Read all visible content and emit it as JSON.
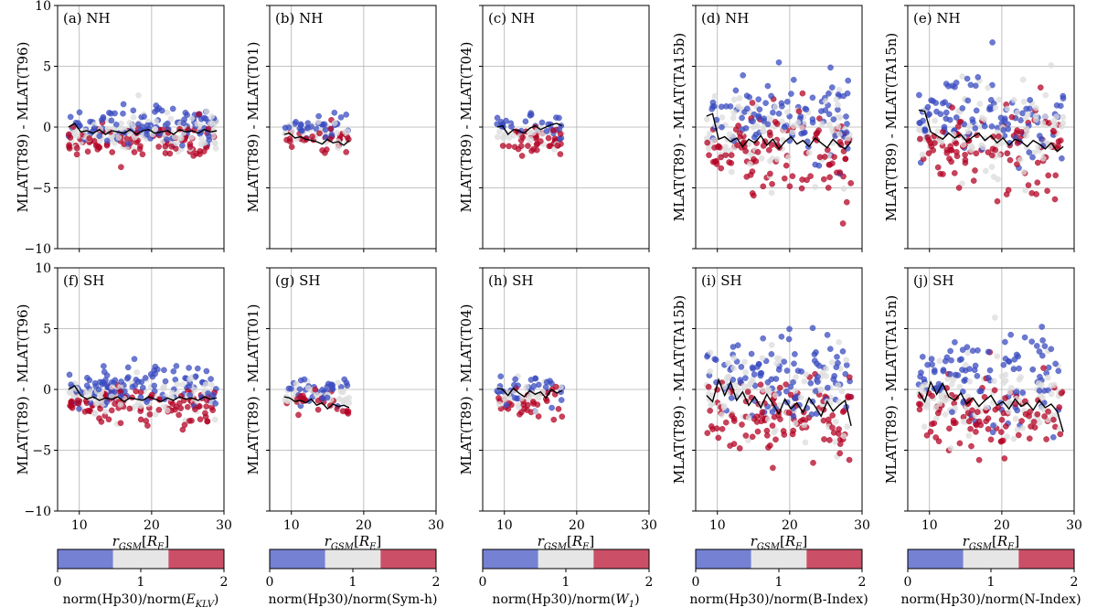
{
  "chart_data": {
    "type": "scatter",
    "layout": "2 rows x 5 columns of scatter panels with shared colorbars below each column",
    "xlim": [
      7,
      30
    ],
    "ylim": [
      -10,
      10
    ],
    "x_ticks": [
      10,
      20,
      30
    ],
    "y_ticks": [
      -10,
      -5,
      0,
      5,
      10
    ],
    "x_tick_labels": [
      "10",
      "20",
      "30"
    ],
    "y_tick_labels": [
      "−10",
      "−5",
      "0",
      "5",
      "10"
    ],
    "xlabel": "r_GSM[R_E]",
    "xlabel_main": "r",
    "xlabel_sub": "GSM",
    "xlabel_unit": "R",
    "xlabel_unit_sub": "E",
    "colormap": {
      "low": "#3b4cc0",
      "mid": "#dcdcdc",
      "high": "#b40426"
    },
    "colorbar_ticks": [
      "0",
      "1",
      "2"
    ],
    "colorbar_range": [
      0,
      2
    ],
    "median_line_color": "#000000",
    "panels": [
      {
        "label": "(a) NH",
        "hemisphere": "NH",
        "ylabel": "MLAT(T89) - MLAT(T96)",
        "x_range": [
          8.5,
          29
        ],
        "median_y": [
          0.0,
          0.3,
          -0.4,
          -0.3,
          -0.5,
          -0.2,
          -0.6,
          -0.3,
          -0.4,
          -0.5,
          -0.2,
          -0.6,
          -0.3,
          -0.2,
          -0.5,
          -0.4,
          -0.3,
          -0.6,
          -0.2,
          -0.4,
          -0.3,
          -0.5,
          -0.2,
          -0.4,
          -0.3
        ],
        "spread": 1.2,
        "show_ylabel_ticks": true
      },
      {
        "label": "(b) NH",
        "hemisphere": "NH",
        "ylabel": "MLAT(T89) - MLAT(T01)",
        "x_range": [
          9,
          18
        ],
        "median_y": [
          -0.6,
          -0.5,
          -0.9,
          -0.8,
          -1.0,
          -1.1,
          -1.2,
          -1.4,
          -1.0,
          -1.3,
          -1.2,
          -1.5,
          -1.1
        ],
        "spread": 0.9
      },
      {
        "label": "(c) NH",
        "hemisphere": "NH",
        "ylabel": "MLAT(T89) - MLAT(T04)",
        "x_range": [
          9,
          18
        ],
        "median_y": [
          0.0,
          0.1,
          -0.6,
          -0.2,
          -0.3,
          -0.5,
          -0.1,
          0.1,
          -0.2,
          0.0,
          0.2,
          0.3,
          0.1
        ],
        "spread": 1.1
      },
      {
        "label": "(d) NH",
        "hemisphere": "NH",
        "ylabel": "MLAT(T89) - MLAT(TA15b)",
        "x_range": [
          8.5,
          28.5
        ],
        "median_y": [
          0.9,
          1.1,
          -1.0,
          -0.8,
          -1.2,
          -0.9,
          -1.6,
          -1.0,
          -1.3,
          -0.7,
          -1.5,
          -1.0,
          -1.8,
          -1.2,
          -0.8,
          -1.4,
          -1.1,
          -1.6,
          -0.9,
          -1.3,
          -1.7,
          -1.0,
          -1.5,
          -1.8,
          -1.2
        ],
        "spread": 2.8
      },
      {
        "label": "(e) NH",
        "hemisphere": "NH",
        "ylabel": "MLAT(T89) - MLAT(TA15n)",
        "x_range": [
          8.5,
          28.5
        ],
        "median_y": [
          1.4,
          1.3,
          -0.4,
          -0.7,
          -1.0,
          -0.5,
          -0.9,
          -0.6,
          -1.2,
          -0.8,
          -0.5,
          -1.1,
          -0.7,
          -1.3,
          -0.9,
          -1.5,
          -1.0,
          -1.2,
          -1.6,
          -1.1,
          -1.4,
          -1.8,
          -1.3,
          -2.0,
          -1.6
        ],
        "spread": 2.6
      },
      {
        "label": "(f) SH",
        "hemisphere": "SH",
        "ylabel": "MLAT(T89) - MLAT(T96)",
        "x_range": [
          8.5,
          29
        ],
        "median_y": [
          0.0,
          0.3,
          -0.5,
          -0.8,
          -0.6,
          -0.9,
          -0.7,
          -0.8,
          -0.6,
          -1.0,
          -0.7,
          -0.8,
          -0.9,
          -0.6,
          -0.8,
          -1.0,
          -0.7,
          -0.9,
          -0.6,
          -0.8,
          -0.7,
          -0.9,
          -0.6,
          -0.8,
          -0.7
        ],
        "spread": 1.3,
        "show_ylabel_ticks": true
      },
      {
        "label": "(g) SH",
        "hemisphere": "SH",
        "ylabel": "MLAT(T89) - MLAT(T01)",
        "x_range": [
          9,
          18
        ],
        "median_y": [
          -0.6,
          -0.7,
          -1.0,
          -0.9,
          -1.1,
          -0.8,
          -1.3,
          -1.1,
          -1.6,
          -1.2,
          -1.4,
          -1.3,
          -1.5
        ],
        "spread": 1.0
      },
      {
        "label": "(h) SH",
        "hemisphere": "SH",
        "ylabel": "MLAT(T89) - MLAT(T04)",
        "x_range": [
          9,
          18
        ],
        "median_y": [
          0.1,
          0.0,
          -0.5,
          0.1,
          -0.3,
          -0.6,
          -0.1,
          -0.4,
          -0.2,
          -0.7,
          0.0,
          -0.3,
          -0.1
        ],
        "spread": 1.2
      },
      {
        "label": "(i) SH",
        "hemisphere": "SH",
        "ylabel": "MLAT(T89) - MLAT(TA15b)",
        "x_range": [
          8.5,
          28.5
        ],
        "median_y": [
          -0.5,
          -1.0,
          0.8,
          -0.5,
          0.6,
          -0.9,
          -0.2,
          -1.3,
          -0.6,
          -1.5,
          -0.4,
          -1.2,
          -2.0,
          -0.8,
          -1.6,
          -1.1,
          -1.9,
          -0.7,
          -1.4,
          -2.2,
          -1.0,
          -1.8,
          -1.3,
          -0.9,
          -3.0
        ],
        "spread": 2.9
      },
      {
        "label": "(j) SH",
        "hemisphere": "SH",
        "ylabel": "MLAT(T89) - MLAT(TA15n)",
        "x_range": [
          8.5,
          28.5
        ],
        "median_y": [
          -0.2,
          -1.0,
          0.6,
          -0.4,
          0.5,
          -0.6,
          -0.9,
          -0.3,
          -1.2,
          -0.7,
          -1.4,
          -0.9,
          -0.5,
          -1.3,
          -1.0,
          -1.6,
          -0.8,
          -1.4,
          -1.1,
          -1.7,
          -0.9,
          -1.5,
          -1.2,
          -1.8,
          -3.5
        ],
        "spread": 2.7
      }
    ],
    "colorbars": [
      {
        "numerator": "norm(Hp30)/norm(",
        "index": "E",
        "index_sub": "KLV",
        "suffix": ")"
      },
      {
        "numerator": "norm(Hp30)/norm(",
        "index": "Sym-h",
        "index_sub": "",
        "suffix": ")"
      },
      {
        "numerator": "norm(Hp30)/norm(",
        "index": "W",
        "index_sub": "1",
        "suffix": ")"
      },
      {
        "numerator": "norm(Hp30)/norm(",
        "index": "B-Index",
        "index_sub": "",
        "suffix": ")"
      },
      {
        "numerator": "norm(Hp30)/norm(",
        "index": "N-Index",
        "index_sub": "",
        "suffix": ")"
      }
    ]
  }
}
